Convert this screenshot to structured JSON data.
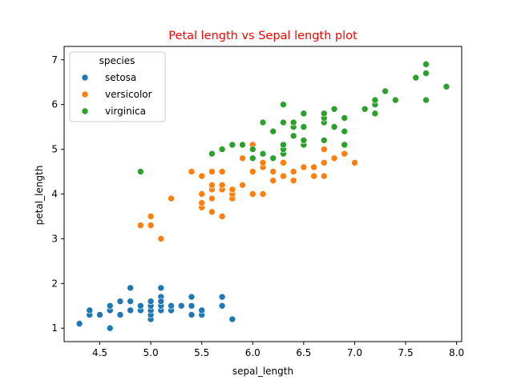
{
  "chart_data": {
    "type": "scatter",
    "title": "Petal length vs Sepal length plot",
    "title_color": "#ff0000",
    "xlabel": "sepal_length",
    "ylabel": "petal_length",
    "xlim": [
      4.15,
      8.05
    ],
    "ylim": [
      0.7,
      7.3
    ],
    "xticks": [
      "4.5",
      "5.0",
      "5.5",
      "6.0",
      "6.5",
      "7.0",
      "7.5",
      "8.0"
    ],
    "yticks": [
      "1",
      "2",
      "3",
      "4",
      "5",
      "6",
      "7"
    ],
    "grid": false,
    "legend": {
      "title": "species",
      "placement": "top-left"
    },
    "series": [
      {
        "name": "setosa",
        "color": "#1f77b4",
        "points": [
          [
            4.3,
            1.1
          ],
          [
            4.4,
            1.3
          ],
          [
            4.4,
            1.4
          ],
          [
            4.5,
            1.3
          ],
          [
            4.6,
            1.0
          ],
          [
            4.6,
            1.4
          ],
          [
            4.6,
            1.5
          ],
          [
            4.7,
            1.3
          ],
          [
            4.7,
            1.6
          ],
          [
            4.8,
            1.4
          ],
          [
            4.8,
            1.6
          ],
          [
            4.8,
            1.9
          ],
          [
            4.9,
            1.4
          ],
          [
            4.9,
            1.5
          ],
          [
            5.0,
            1.2
          ],
          [
            5.0,
            1.3
          ],
          [
            5.0,
            1.4
          ],
          [
            5.0,
            1.5
          ],
          [
            5.0,
            1.6
          ],
          [
            5.1,
            1.4
          ],
          [
            5.1,
            1.5
          ],
          [
            5.1,
            1.7
          ],
          [
            5.1,
            1.9
          ],
          [
            5.1,
            1.6
          ],
          [
            5.2,
            1.4
          ],
          [
            5.2,
            1.5
          ],
          [
            5.3,
            1.5
          ],
          [
            5.4,
            1.3
          ],
          [
            5.4,
            1.5
          ],
          [
            5.4,
            1.7
          ],
          [
            5.5,
            1.3
          ],
          [
            5.5,
            1.4
          ],
          [
            5.7,
            1.5
          ],
          [
            5.7,
            1.7
          ],
          [
            5.8,
            1.2
          ]
        ]
      },
      {
        "name": "versicolor",
        "color": "#ff7f0e",
        "points": [
          [
            4.9,
            3.3
          ],
          [
            5.0,
            3.3
          ],
          [
            5.0,
            3.5
          ],
          [
            5.1,
            3.0
          ],
          [
            5.2,
            3.9
          ],
          [
            5.4,
            4.5
          ],
          [
            5.5,
            3.7
          ],
          [
            5.5,
            3.8
          ],
          [
            5.5,
            4.0
          ],
          [
            5.5,
            4.4
          ],
          [
            5.6,
            3.6
          ],
          [
            5.6,
            3.9
          ],
          [
            5.6,
            4.1
          ],
          [
            5.6,
            4.2
          ],
          [
            5.6,
            4.5
          ],
          [
            5.7,
            3.5
          ],
          [
            5.7,
            4.1
          ],
          [
            5.7,
            4.2
          ],
          [
            5.7,
            4.5
          ],
          [
            5.8,
            3.9
          ],
          [
            5.8,
            4.0
          ],
          [
            5.8,
            4.1
          ],
          [
            5.9,
            4.2
          ],
          [
            5.9,
            4.8
          ],
          [
            6.0,
            4.0
          ],
          [
            6.0,
            4.5
          ],
          [
            6.0,
            5.1
          ],
          [
            6.1,
            4.0
          ],
          [
            6.1,
            4.6
          ],
          [
            6.1,
            4.7
          ],
          [
            6.2,
            4.3
          ],
          [
            6.2,
            4.5
          ],
          [
            6.3,
            4.4
          ],
          [
            6.3,
            4.7
          ],
          [
            6.3,
            4.9
          ],
          [
            6.4,
            4.3
          ],
          [
            6.4,
            4.5
          ],
          [
            6.5,
            4.6
          ],
          [
            6.6,
            4.4
          ],
          [
            6.6,
            4.6
          ],
          [
            6.7,
            4.4
          ],
          [
            6.7,
            4.7
          ],
          [
            6.7,
            5.0
          ],
          [
            6.8,
            4.8
          ],
          [
            6.9,
            4.9
          ],
          [
            7.0,
            4.7
          ]
        ]
      },
      {
        "name": "virginica",
        "color": "#2ca02c",
        "points": [
          [
            4.9,
            4.5
          ],
          [
            5.6,
            4.9
          ],
          [
            5.7,
            5.0
          ],
          [
            5.8,
            5.1
          ],
          [
            5.9,
            5.1
          ],
          [
            6.0,
            4.8
          ],
          [
            6.0,
            5.0
          ],
          [
            6.1,
            4.9
          ],
          [
            6.1,
            5.6
          ],
          [
            6.2,
            4.8
          ],
          [
            6.2,
            5.4
          ],
          [
            6.3,
            4.9
          ],
          [
            6.3,
            5.0
          ],
          [
            6.3,
            5.1
          ],
          [
            6.3,
            5.6
          ],
          [
            6.3,
            6.0
          ],
          [
            6.4,
            5.3
          ],
          [
            6.4,
            5.5
          ],
          [
            6.4,
            5.6
          ],
          [
            6.5,
            5.1
          ],
          [
            6.5,
            5.2
          ],
          [
            6.5,
            5.5
          ],
          [
            6.5,
            5.8
          ],
          [
            6.7,
            5.2
          ],
          [
            6.7,
            5.6
          ],
          [
            6.7,
            5.7
          ],
          [
            6.7,
            5.8
          ],
          [
            6.8,
            5.5
          ],
          [
            6.8,
            5.9
          ],
          [
            6.9,
            5.1
          ],
          [
            6.9,
            5.4
          ],
          [
            6.9,
            5.7
          ],
          [
            7.1,
            5.9
          ],
          [
            7.2,
            5.8
          ],
          [
            7.2,
            6.0
          ],
          [
            7.2,
            6.1
          ],
          [
            7.3,
            6.3
          ],
          [
            7.4,
            6.1
          ],
          [
            7.6,
            6.6
          ],
          [
            7.7,
            6.1
          ],
          [
            7.7,
            6.7
          ],
          [
            7.7,
            6.9
          ],
          [
            7.9,
            6.4
          ]
        ]
      }
    ]
  }
}
